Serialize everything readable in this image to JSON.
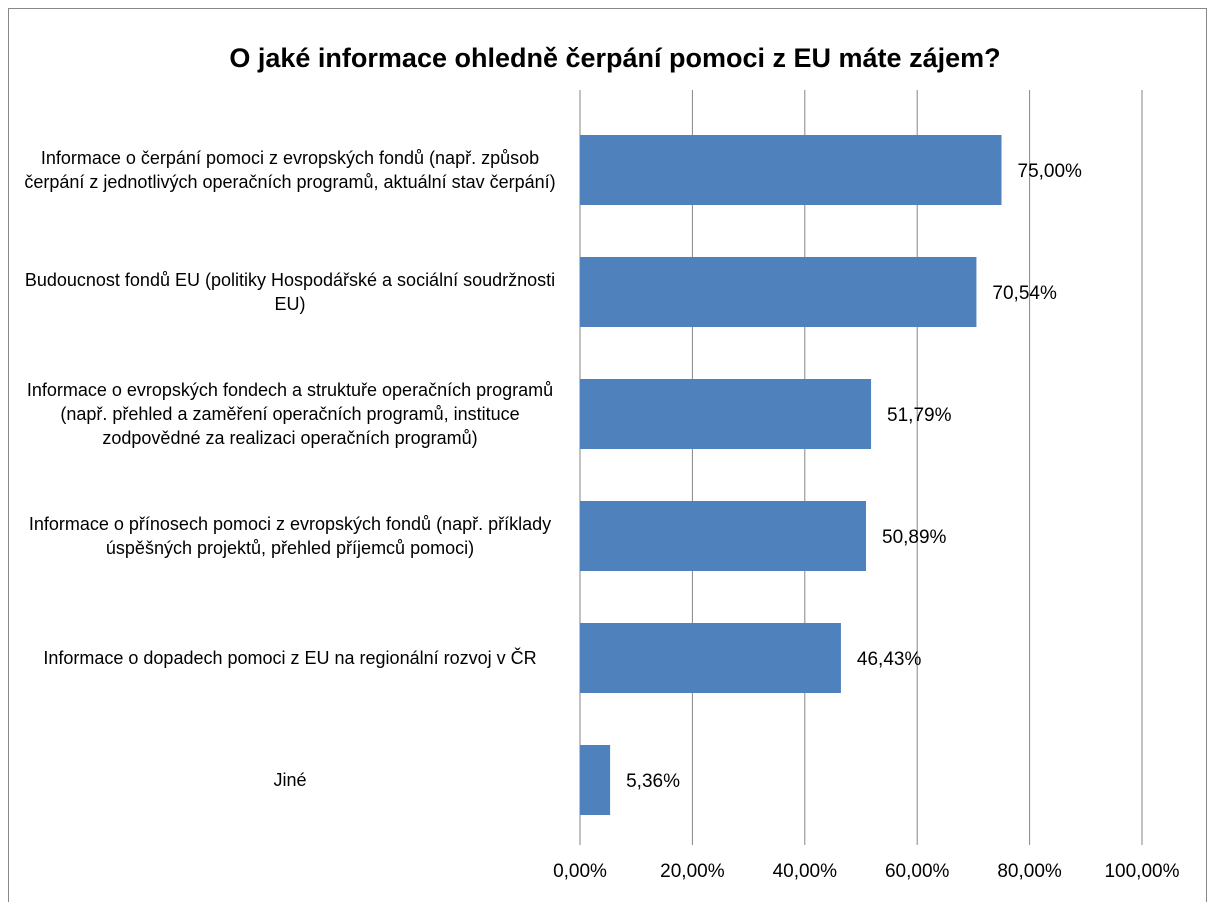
{
  "chart_data": {
    "type": "bar",
    "orientation": "horizontal",
    "title": "O jaké informace ohledně čerpání pomoci z EU máte zájem?",
    "categories": [
      "Informace o čerpání pomoci z evropských fondů (např. způsob čerpání z jednotlivých operačních programů, aktuální stav čerpání)",
      "Budoucnost fondů EU (politiky Hospodářské a sociální soudržnosti EU)",
      "Informace o evropských fondech a struktuře operačních programů (např. přehled a zaměření operačních programů, instituce zodpovědné za realizaci operačních programů)",
      "Informace o přínosech pomoci z evropských fondů (např. příklady úspěšných projektů, přehled příjemců pomoci)",
      "Informace o dopadech pomoci z EU na regionální rozvoj v ČR",
      "Jiné"
    ],
    "values": [
      75.0,
      70.54,
      51.79,
      50.89,
      46.43,
      5.36
    ],
    "value_labels": [
      "75,00%",
      "70,54%",
      "51,79%",
      "50,89%",
      "46,43%",
      "5,36%"
    ],
    "color": "#4f81bd",
    "xlim": [
      0,
      100
    ],
    "xticks": [
      {
        "value": 0,
        "label": "0,00%"
      },
      {
        "value": 20,
        "label": "20,00%"
      },
      {
        "value": 40,
        "label": "40,00%"
      },
      {
        "value": 60,
        "label": "60,00%"
      },
      {
        "value": 80,
        "label": "80,00%"
      },
      {
        "value": 100,
        "label": "100,00%"
      }
    ],
    "grid": true
  }
}
